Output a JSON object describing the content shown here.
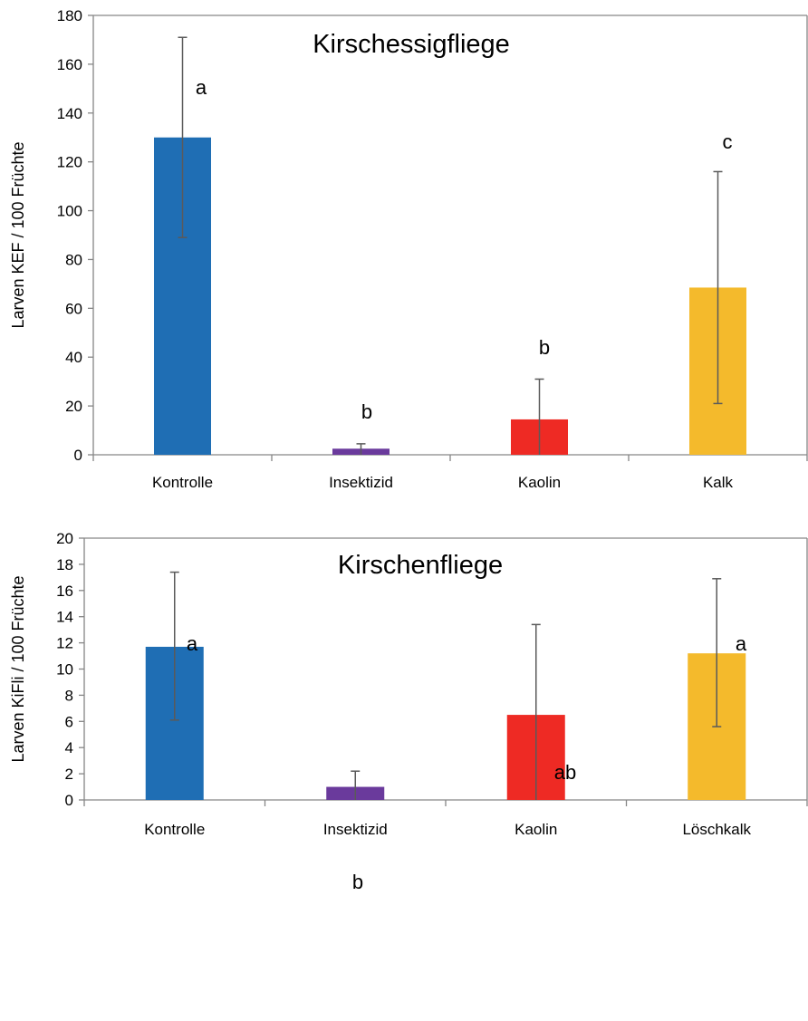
{
  "chart_data": [
    {
      "type": "bar",
      "title": "Kirschessigfliege",
      "ylabel": "Larven KEF / 100 Früchte",
      "xlabel": "",
      "ylim": [
        0,
        180
      ],
      "yticks": [
        0,
        20,
        40,
        60,
        80,
        100,
        120,
        140,
        160,
        180
      ],
      "categories": [
        "Kontrolle",
        "Insektizid",
        "Kaolin",
        "Kalk"
      ],
      "values": [
        130,
        2.5,
        14.5,
        68.5
      ],
      "error_low": [
        89,
        0,
        0,
        21
      ],
      "error_high": [
        171,
        4.5,
        31,
        116
      ],
      "significance_labels": [
        "a",
        "b",
        "b",
        "c"
      ],
      "colors": [
        "#1f6eb4",
        "#6a3a9c",
        "#ee2a24",
        "#f4ba2c"
      ],
      "grid": false,
      "legend": "none"
    },
    {
      "type": "bar",
      "title": "Kirschenfliege",
      "ylabel": "Larven KiFli / 100 Früchte",
      "xlabel": "",
      "ylim": [
        0,
        20
      ],
      "yticks": [
        0,
        2,
        4,
        6,
        8,
        10,
        12,
        14,
        16,
        18,
        20
      ],
      "categories": [
        "Kontrolle",
        "Insektizid",
        "Kaolin",
        "Löschkalk"
      ],
      "values": [
        11.7,
        1.0,
        6.5,
        11.2
      ],
      "error_low": [
        6.1,
        0,
        0,
        5.6
      ],
      "error_high": [
        17.4,
        2.2,
        13.4,
        16.9
      ],
      "significance_labels": [
        "a",
        "b",
        "ab",
        "a"
      ],
      "colors": [
        "#1f6eb4",
        "#6a3a9c",
        "#ee2a24",
        "#f4ba2c"
      ],
      "grid": false,
      "legend": "none"
    }
  ]
}
